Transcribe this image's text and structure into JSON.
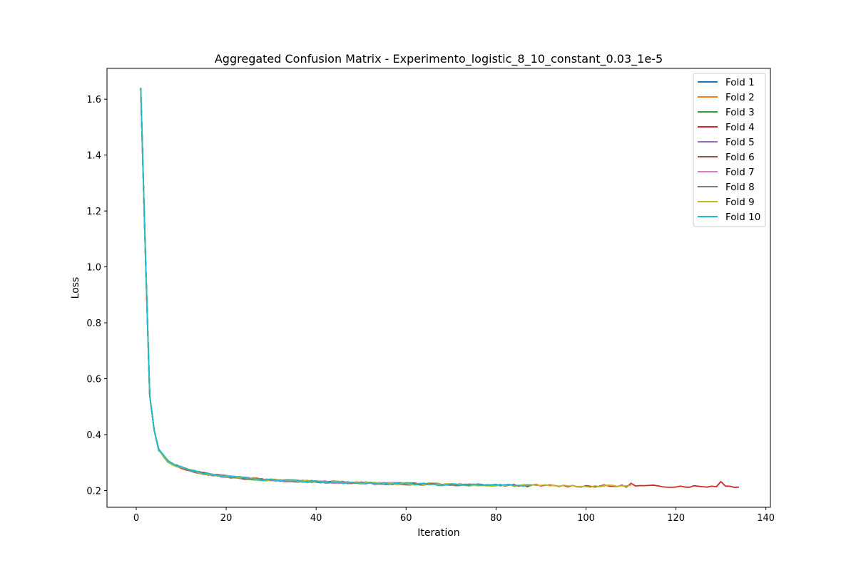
{
  "chart_data": {
    "type": "line",
    "title": "Aggregated Confusion Matrix - Experimento_logistic_8_10_constant_0.03_1e-5",
    "xlabel": "Iteration",
    "ylabel": "Loss",
    "xlim": [
      -6.5,
      141
    ],
    "ylim": [
      0.14,
      1.71
    ],
    "xticks": [
      0,
      20,
      40,
      60,
      80,
      100,
      120,
      140
    ],
    "yticks": [
      0.2,
      0.4,
      0.6,
      0.8,
      1.0,
      1.2,
      1.4,
      1.6
    ],
    "xtick_labels": [
      "0",
      "20",
      "40",
      "60",
      "80",
      "100",
      "120",
      "140"
    ],
    "ytick_labels": [
      "0.2",
      "0.4",
      "0.6",
      "0.8",
      "1.0",
      "1.2",
      "1.4",
      "1.6"
    ],
    "grid": false,
    "legend_position": "upper right",
    "curve_shape": {
      "head": [
        [
          1,
          1.64
        ],
        [
          2,
          1.07
        ],
        [
          3,
          0.54
        ],
        [
          4,
          0.415
        ],
        [
          5,
          0.345
        ],
        [
          6,
          0.325
        ],
        [
          7,
          0.305
        ],
        [
          8,
          0.295
        ],
        [
          10,
          0.282
        ],
        [
          12,
          0.272
        ],
        [
          14,
          0.264
        ],
        [
          16,
          0.258
        ],
        [
          18,
          0.254
        ],
        [
          20,
          0.25
        ],
        [
          25,
          0.243
        ],
        [
          30,
          0.237
        ],
        [
          40,
          0.232
        ],
        [
          50,
          0.227
        ],
        [
          60,
          0.224
        ],
        [
          70,
          0.221
        ],
        [
          80,
          0.219
        ],
        [
          90,
          0.217
        ],
        [
          100,
          0.216
        ],
        [
          110,
          0.216
        ],
        [
          120,
          0.215
        ],
        [
          134,
          0.215
        ]
      ],
      "noise_amplitude": 0.004
    },
    "series": [
      {
        "name": "Fold 1",
        "color": "#1f77b4",
        "last_iteration": 82,
        "seed": 3
      },
      {
        "name": "Fold 2",
        "color": "#ff7f0e",
        "last_iteration": 73,
        "seed": 7
      },
      {
        "name": "Fold 3",
        "color": "#2ca02c",
        "last_iteration": 67,
        "seed": 11
      },
      {
        "name": "Fold 4",
        "color": "#d62728",
        "last_iteration": 134,
        "seed": 13,
        "spikes": [
          [
            110,
            0.226
          ],
          [
            130,
            0.232
          ]
        ]
      },
      {
        "name": "Fold 5",
        "color": "#9467bd",
        "last_iteration": 62,
        "seed": 17
      },
      {
        "name": "Fold 6",
        "color": "#8c564b",
        "last_iteration": 65,
        "seed": 19
      },
      {
        "name": "Fold 7",
        "color": "#e377c2",
        "last_iteration": 60,
        "seed": 23
      },
      {
        "name": "Fold 8",
        "color": "#7f7f7f",
        "last_iteration": 78,
        "seed": 29
      },
      {
        "name": "Fold 9",
        "color": "#bcbd22",
        "last_iteration": 110,
        "seed": 31
      },
      {
        "name": "Fold 10",
        "color": "#17becf",
        "last_iteration": 88,
        "seed": 37
      }
    ]
  }
}
